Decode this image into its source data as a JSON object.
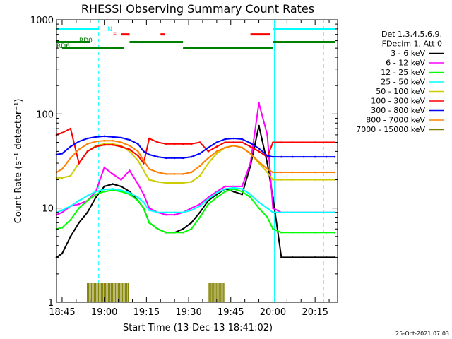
{
  "chart_data": {
    "type": "line",
    "title": "RHESSI Observing Summary Count Rates",
    "xlabel": "Start Time (13-Dec-13 18:41:02)",
    "ylabel": "Count Rate (s⁻¹ detector⁻¹)",
    "y_scale": "log",
    "ylim": [
      1,
      1000
    ],
    "xlim_minutes": [
      -2,
      98
    ],
    "x_ticks": [
      {
        "label": "18:45",
        "t": 0
      },
      {
        "label": "19:00",
        "t": 15
      },
      {
        "label": "19:15",
        "t": 30
      },
      {
        "label": "19:30",
        "t": 45
      },
      {
        "label": "19:45",
        "t": 60
      },
      {
        "label": "20:00",
        "t": 75
      },
      {
        "label": "20:15",
        "t": 90
      }
    ],
    "y_ticks": [
      {
        "label": "1",
        "v": 1
      },
      {
        "label": "10",
        "v": 10
      },
      {
        "label": "100",
        "v": 100
      },
      {
        "label": "1000",
        "v": 1000
      }
    ],
    "legend_header": [
      "Det 1,3,4,5,6,9,",
      "FDecim 1, Att 0"
    ],
    "legend_position": "right",
    "x_time_unit": "minutes after 18:45",
    "sample_times": [
      -2,
      0,
      3,
      6,
      9,
      12,
      15,
      18,
      21,
      24,
      27,
      29,
      31,
      34,
      37,
      40,
      43,
      46,
      49,
      52,
      55,
      58,
      61,
      64,
      67,
      70,
      73,
      75,
      78,
      82,
      86,
      90,
      94,
      97
    ],
    "series": [
      {
        "name": "3 - 6 keV",
        "color": "#000000",
        "values": [
          3,
          3.3,
          5,
          7,
          9,
          13,
          17,
          18,
          17,
          15,
          12,
          10,
          7,
          6,
          5.5,
          5.5,
          6,
          7,
          9,
          12,
          14,
          16,
          15,
          14,
          28,
          75,
          30,
          13,
          3,
          3,
          3,
          3,
          3,
          3
        ]
      },
      {
        "name": "6 - 12 keV",
        "color": "#ff00ff",
        "values": [
          8.5,
          9,
          10.5,
          11,
          12,
          15,
          27,
          23,
          20,
          25,
          18,
          14,
          10,
          9,
          8.5,
          8.5,
          9,
          10,
          11,
          13,
          15,
          17,
          17,
          17,
          30,
          130,
          60,
          10,
          9,
          9,
          9,
          9,
          9,
          9
        ]
      },
      {
        "name": "12 - 25 keV",
        "color": "#00ff00",
        "values": [
          6,
          6.2,
          7.5,
          10,
          12,
          14,
          15,
          15.5,
          15,
          14,
          12,
          10,
          7,
          6,
          5.5,
          5.5,
          5.5,
          6,
          8,
          11,
          13,
          15,
          16,
          15,
          13,
          10,
          8,
          6,
          5.5,
          5.5,
          5.5,
          5.5,
          5.5,
          5.5
        ]
      },
      {
        "name": "25 - 50 keV",
        "color": "#00ffff",
        "values": [
          9,
          9.5,
          10.5,
          12,
          13.5,
          15,
          15.8,
          16,
          15.5,
          14.5,
          13,
          11.5,
          9.5,
          9,
          9,
          9,
          9,
          9.5,
          10.5,
          12.5,
          14.5,
          16,
          16.5,
          16,
          14,
          11.5,
          10,
          9,
          9,
          9,
          9,
          9,
          9,
          9
        ]
      },
      {
        "name": "50 - 100 keV",
        "color": "#cccc00",
        "values": [
          21,
          21,
          22,
          30,
          40,
          46,
          48,
          48,
          46,
          40,
          32,
          25,
          20,
          19,
          18.5,
          18.5,
          18.5,
          19,
          22,
          30,
          38,
          44,
          46,
          44,
          38,
          30,
          24,
          20,
          20,
          20,
          20,
          20,
          20,
          20
        ]
      },
      {
        "name": "100 - 300 keV",
        "color": "#ff0000",
        "values": [
          60,
          63,
          70,
          30,
          40,
          45,
          47,
          47,
          45,
          42,
          36,
          30,
          55,
          50,
          48,
          48,
          48,
          48,
          50,
          40,
          45,
          50,
          50,
          50,
          45,
          40,
          35,
          50,
          50,
          50,
          50,
          50,
          50,
          50
        ]
      },
      {
        "name": "300 - 800 keV",
        "color": "#0000ff",
        "values": [
          37,
          38,
          45,
          51,
          55,
          57,
          58,
          57,
          56,
          53,
          48,
          40,
          37,
          35,
          34,
          34,
          34,
          35,
          38,
          44,
          50,
          54,
          55,
          54,
          49,
          43,
          36,
          35,
          35,
          35,
          35,
          35,
          35,
          35
        ]
      },
      {
        "name": "800 - 7000 keV",
        "color": "#ff8000",
        "values": [
          24,
          26,
          34,
          42,
          48,
          51,
          52,
          52,
          50,
          46,
          40,
          32,
          26,
          24,
          23,
          23,
          23,
          24,
          28,
          34,
          40,
          44,
          46,
          44,
          38,
          31,
          26,
          24,
          24,
          24,
          24,
          24,
          24,
          24
        ]
      },
      {
        "name": "7000 - 15000 keV",
        "color": "#808000",
        "values": [
          null,
          null,
          null,
          null,
          1.5,
          1.6,
          1.5,
          1.4,
          1.6,
          1.5,
          null,
          null,
          null,
          null,
          null,
          null,
          null,
          null,
          null,
          1.6,
          1.5,
          1.4,
          null,
          null,
          null,
          null,
          null,
          null,
          null,
          null,
          null,
          null,
          null,
          null
        ]
      }
    ],
    "flag_labels": [
      "N",
      "F",
      "RD0",
      "RD6"
    ],
    "flags": [
      {
        "name": "N",
        "color": "#00ffff",
        "level": 800,
        "segments": [
          [
            -2,
            13
          ],
          [
            75,
            97
          ]
        ]
      },
      {
        "name": "F",
        "color": "#ff0000",
        "level": 700,
        "segments": [
          [
            21,
            24
          ],
          [
            35,
            36.5
          ],
          [
            67,
            74
          ]
        ]
      },
      {
        "name": "RD0",
        "color": "#008000",
        "level": 580,
        "segments": [
          [
            -2,
            10
          ],
          [
            24,
            43
          ],
          [
            75,
            97
          ]
        ]
      },
      {
        "name": "RD6",
        "color": "#008000",
        "level": 500,
        "segments": [
          [
            0,
            22
          ],
          [
            43,
            75
          ]
        ]
      }
    ],
    "vlines": [
      {
        "t": -2,
        "color": "#00ffff",
        "style": "solid"
      },
      {
        "t": 13,
        "color": "#00ffff",
        "style": "dashed"
      },
      {
        "t": 75.5,
        "color": "#00ffff",
        "style": "solid"
      },
      {
        "t": 93,
        "color": "#00ffff",
        "style": "dashed"
      }
    ]
  },
  "footer": "25-Oct-2021 07:03"
}
